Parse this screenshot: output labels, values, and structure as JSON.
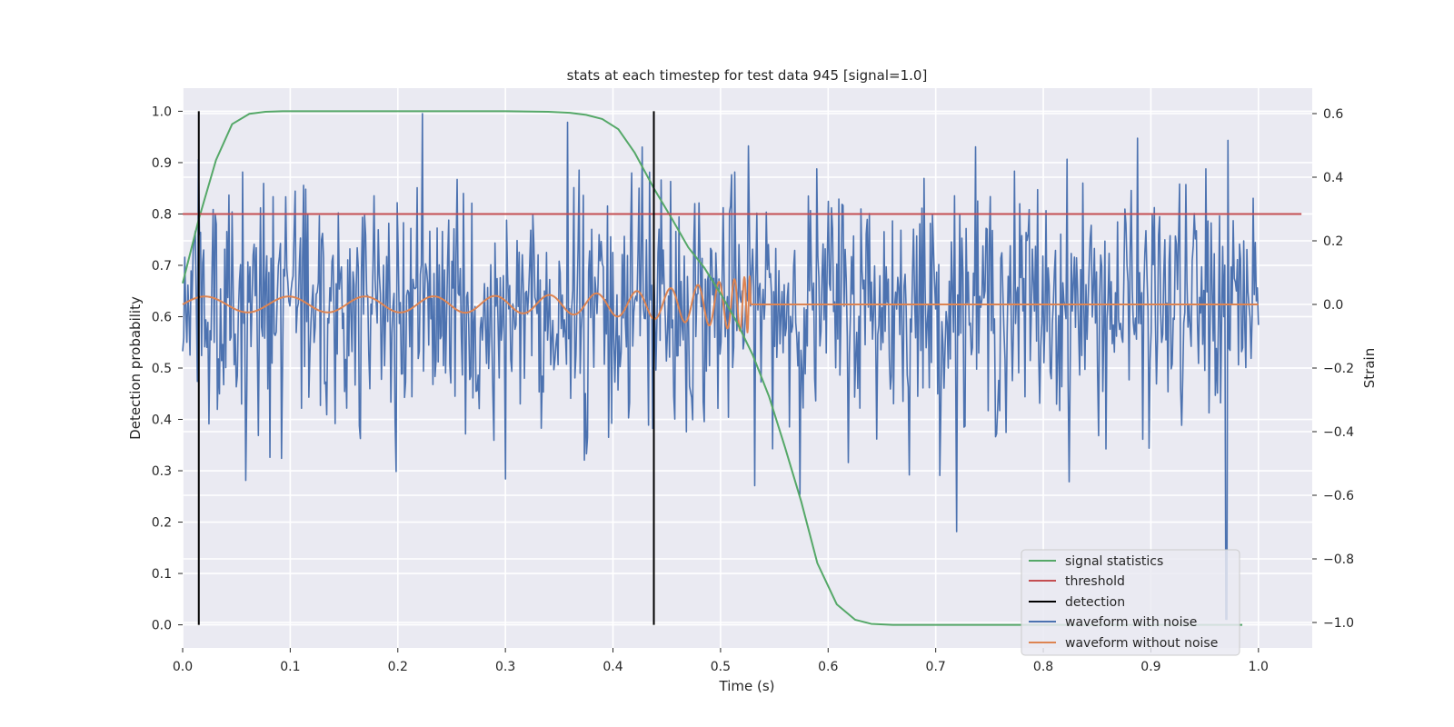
{
  "chart_data": {
    "type": "line",
    "title": "stats at each timestep for test data 945 [signal=1.0]",
    "xlabel": "Time (s)",
    "ylabel": "Detection probability",
    "y2label": "Strain",
    "xlim": [
      0.0,
      1.05
    ],
    "ylim": [
      -0.045,
      1.045
    ],
    "y2lim": [
      -1.08,
      0.68
    ],
    "xticks": [
      0.0,
      0.1,
      0.2,
      0.3,
      0.4,
      0.5,
      0.6,
      0.7,
      0.8,
      0.9,
      1.0
    ],
    "yticks": [
      0.0,
      0.1,
      0.2,
      0.3,
      0.4,
      0.5,
      0.6,
      0.7,
      0.8,
      0.9,
      1.0
    ],
    "y2ticks": [
      -1.0,
      -0.8,
      -0.6,
      -0.4,
      -0.2,
      0.0,
      0.2,
      0.4,
      0.6
    ],
    "xtick_labels": [
      "0.0",
      "0.1",
      "0.2",
      "0.3",
      "0.4",
      "0.5",
      "0.6",
      "0.7",
      "0.8",
      "0.9",
      "1.0"
    ],
    "ytick_labels": [
      "0.0",
      "0.1",
      "0.2",
      "0.3",
      "0.4",
      "0.5",
      "0.6",
      "0.7",
      "0.8",
      "0.9",
      "1.0"
    ],
    "y2tick_labels": [
      "−1.0",
      "−0.8",
      "−0.6",
      "−0.4",
      "−0.2",
      "0.0",
      "0.2",
      "0.4",
      "0.6"
    ],
    "grid": true,
    "legend_position": "bottom-right",
    "threshold": 0.8,
    "detections": [
      0.015,
      0.438
    ],
    "series": [
      {
        "name": "signal statistics",
        "axis": "left",
        "color": "#55a868",
        "x": [
          0.0,
          0.015,
          0.031,
          0.046,
          0.062,
          0.077,
          0.093,
          0.108,
          0.124,
          0.2,
          0.3,
          0.34,
          0.36,
          0.375,
          0.39,
          0.405,
          0.42,
          0.438,
          0.455,
          0.47,
          0.485,
          0.5,
          0.515,
          0.53,
          0.545,
          0.56,
          0.575,
          0.59,
          0.608,
          0.625,
          0.64,
          0.66,
          0.7,
          0.8,
          0.9,
          0.985
        ],
        "y": [
          0.665,
          0.79,
          0.905,
          0.975,
          0.995,
          0.999,
          1.0,
          1.0,
          1.0,
          1.0,
          1.0,
          0.999,
          0.997,
          0.993,
          0.985,
          0.965,
          0.92,
          0.85,
          0.79,
          0.735,
          0.695,
          0.645,
          0.59,
          0.525,
          0.445,
          0.345,
          0.24,
          0.12,
          0.04,
          0.01,
          0.002,
          0.0,
          0.0,
          0.0,
          0.0,
          0.0
        ]
      },
      {
        "name": "threshold",
        "axis": "left",
        "color": "#c44e52",
        "x": [
          0.0,
          1.04
        ],
        "y": [
          0.8,
          0.8
        ]
      },
      {
        "name": "detection",
        "axis": "left",
        "color": "#000000",
        "x": [
          0.015,
          0.438
        ],
        "y": [
          1.0,
          1.0
        ]
      },
      {
        "name": "waveform with noise",
        "axis": "right",
        "color": "#4c72b0",
        "x_range": [
          0.0,
          1.0
        ],
        "samples": 1024,
        "amplitude": 0.19,
        "y_min": -1.0,
        "y_max": 0.6
      },
      {
        "name": "waveform without noise",
        "axis": "right",
        "color": "#dd8452",
        "x_range": [
          0.0,
          1.0
        ],
        "merger_time": 0.528,
        "amplitude_start": 0.025,
        "amplitude_peak": 0.09
      }
    ]
  }
}
